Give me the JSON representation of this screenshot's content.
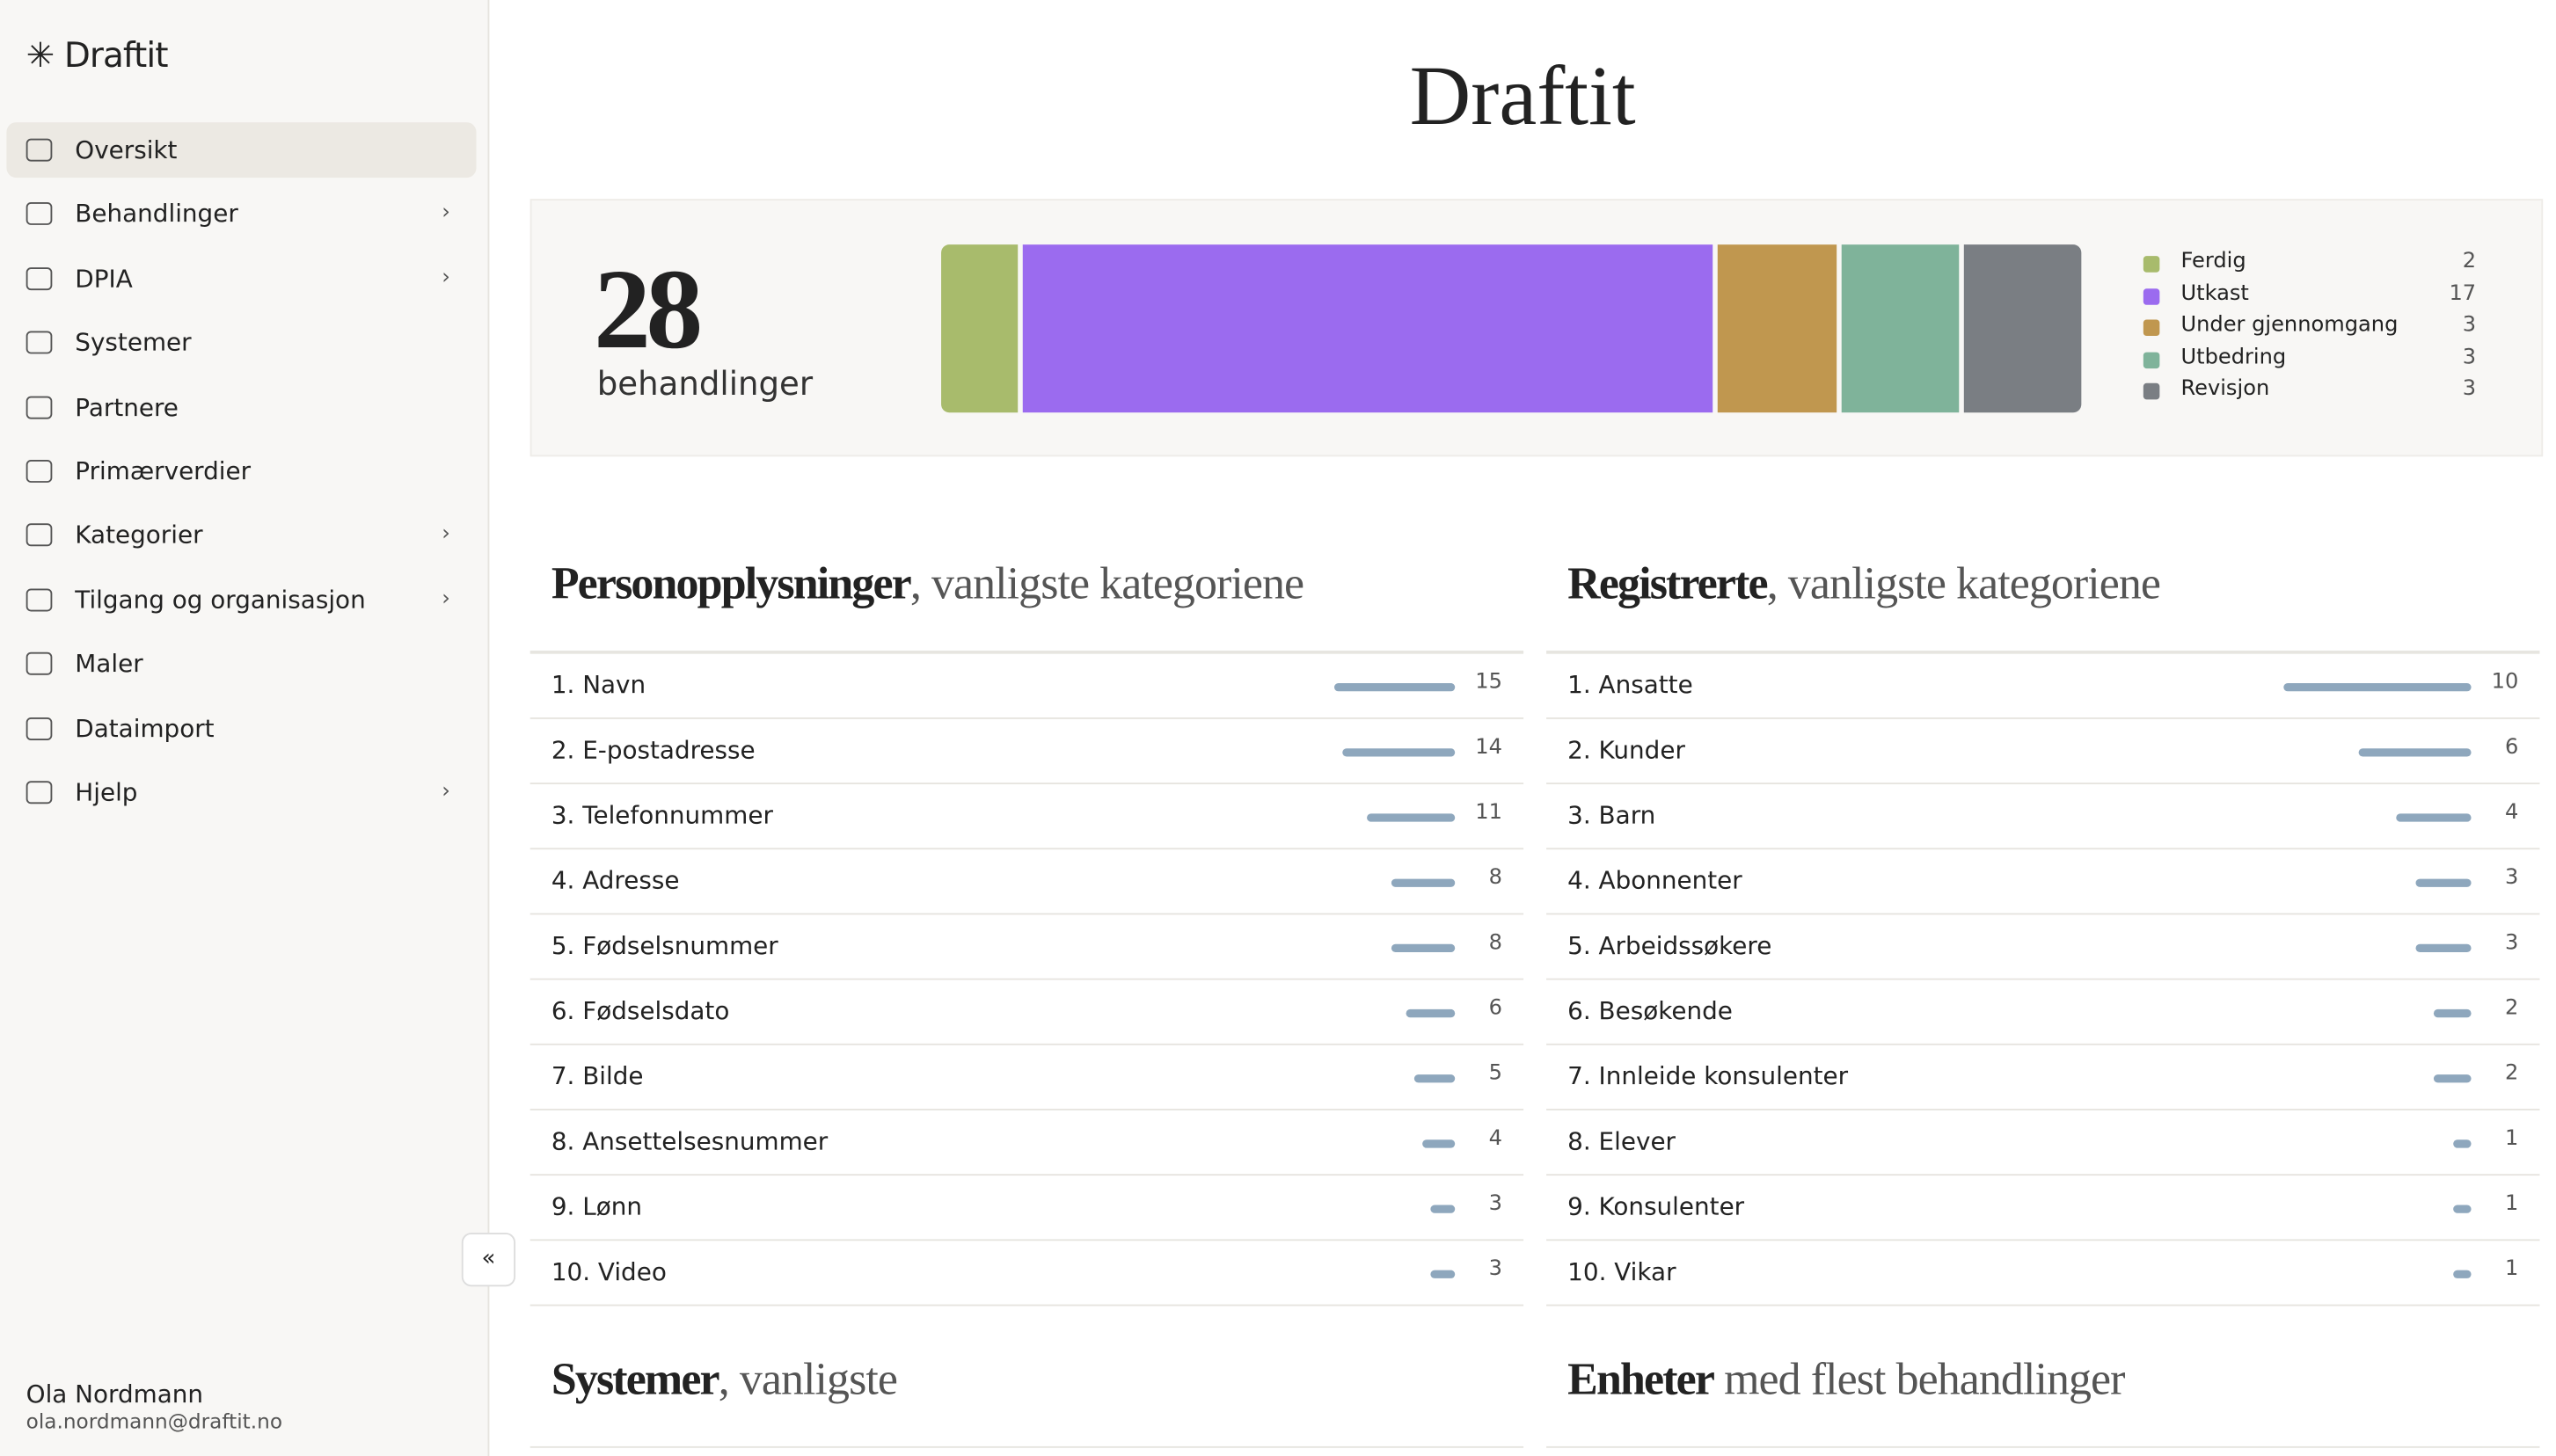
{
  "sidebar": {
    "brand": "Draftit",
    "nav": [
      {
        "label": "Oversikt",
        "expandable": false
      },
      {
        "label": "Behandlinger",
        "expandable": true
      },
      {
        "label": "DPIA",
        "expandable": true
      },
      {
        "label": "Systemer",
        "expandable": false
      },
      {
        "label": "Partnere",
        "expandable": false
      },
      {
        "label": "Primærverdier",
        "expandable": false
      },
      {
        "label": "Kategorier",
        "expandable": true
      },
      {
        "label": "Tilgang og organisasjon",
        "expandable": true
      },
      {
        "label": "Maler",
        "expandable": false
      },
      {
        "label": "Dataimport",
        "expandable": false
      },
      {
        "label": "Hjelp",
        "expandable": true
      }
    ],
    "user": {
      "name": "Ola Nordmann",
      "email": "ola.nordmann@draftit.no"
    }
  },
  "header": {
    "title": "Draftit"
  },
  "summary": {
    "total": 28,
    "total_label": "behandlinger",
    "statuses": [
      {
        "name": "Ferdig",
        "color": "#a8bb6c",
        "count": 2
      },
      {
        "name": "Utkast",
        "color": "#9b6bef",
        "count": 17
      },
      {
        "name": "Under gjennomgang",
        "color": "#c0974f",
        "count": 3
      },
      {
        "name": "Utbedring",
        "color": "#7fb39a",
        "count": 3
      },
      {
        "name": "Revisjon",
        "color": "#7a7e83",
        "count": 3
      }
    ]
  },
  "sections": [
    {
      "title_bold": "Personopplysninger",
      "title_rest": ", vanligste kategoriene",
      "items": [
        {
          "label": "1. Navn",
          "count": 15
        },
        {
          "label": "2. E-postadresse",
          "count": 14
        },
        {
          "label": "3. Telefonnummer",
          "count": 11
        },
        {
          "label": "4. Adresse",
          "count": 8
        },
        {
          "label": "5. Fødselsnummer",
          "count": 8
        },
        {
          "label": "6. Fødselsdato",
          "count": 6
        },
        {
          "label": "7. Bilde",
          "count": 5
        },
        {
          "label": "8. Ansettelsesnummer",
          "count": 4
        },
        {
          "label": "9. Lønn",
          "count": 3
        },
        {
          "label": "10. Video",
          "count": 3
        }
      ]
    },
    {
      "title_bold": "Registrerte",
      "title_rest": ", vanligste kategoriene",
      "items": [
        {
          "label": "1. Ansatte",
          "count": 10
        },
        {
          "label": "2. Kunder",
          "count": 6
        },
        {
          "label": "3. Barn",
          "count": 4
        },
        {
          "label": "4. Abonnenter",
          "count": 3
        },
        {
          "label": "5. Arbeidssøkere",
          "count": 3
        },
        {
          "label": "6. Besøkende",
          "count": 2
        },
        {
          "label": "7. Innleide konsulenter",
          "count": 2
        },
        {
          "label": "8. Elever",
          "count": 1
        },
        {
          "label": "9. Konsulenter",
          "count": 1
        },
        {
          "label": "10. Vikar",
          "count": 1
        }
      ]
    },
    {
      "title_bold": "Systemer",
      "title_rest": ", vanligste",
      "items": []
    },
    {
      "title_bold": "Enheter",
      "title_rest": " med flest behandlinger",
      "items": []
    }
  ]
}
